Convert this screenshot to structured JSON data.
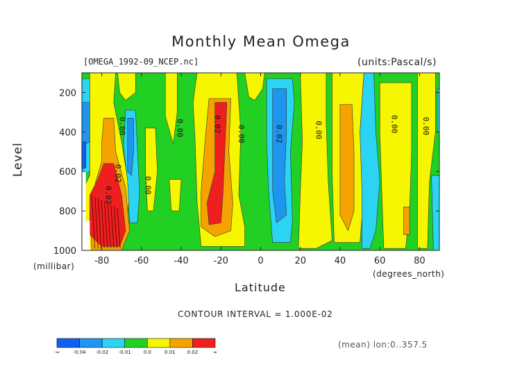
{
  "chart_data": {
    "type": "heatmap",
    "title": "Monthly Mean Omega",
    "source_label": "[OMEGA_1992-09_NCEP.nc]",
    "units_label": "(units:Pascal/s)",
    "xlabel": "Latitude",
    "x_units": "(degrees_north)",
    "ylabel": "Level",
    "y_units": "(millibar)",
    "xlim": [
      -90,
      90
    ],
    "ylim": [
      1000,
      100
    ],
    "x_ticks": [
      "-80",
      "-60",
      "-40",
      "-20",
      "0",
      "20",
      "40",
      "60",
      "80"
    ],
    "x_tick_values": [
      -80,
      -60,
      -40,
      -20,
      0,
      20,
      40,
      60,
      80
    ],
    "y_ticks": [
      "200",
      "400",
      "600",
      "800",
      "1000"
    ],
    "y_tick_values": [
      200,
      400,
      600,
      800,
      1000
    ],
    "contour_interval": "CONTOUR INTERVAL = 1.000E-02",
    "mean_note": "(mean) lon:0..357.5",
    "colorbar": {
      "labels": [
        "-∞",
        "-0.04",
        "-0.02",
        "-0.01",
        "0.0",
        "0.01",
        "0.02",
        "∞"
      ],
      "colors": [
        "#1060f0",
        "#1e96f0",
        "#2ad4f2",
        "#22d024",
        "#f6f600",
        "#f5a300",
        "#ef1f1f"
      ]
    },
    "contour_labels": [
      {
        "text": "0.00",
        "lat": -71,
        "lev": 370
      },
      {
        "text": "0.00",
        "lat": -42,
        "lev": 380
      },
      {
        "text": "0.02",
        "lat": -23,
        "lev": 360
      },
      {
        "text": "0.00",
        "lat": -11,
        "lev": 410
      },
      {
        "text": "0.02",
        "lat": 8,
        "lev": 410
      },
      {
        "text": "0.00",
        "lat": 28,
        "lev": 390
      },
      {
        "text": "0.00",
        "lat": 66,
        "lev": 360
      },
      {
        "text": "0.00",
        "lat": 82,
        "lev": 370
      },
      {
        "text": "0.00",
        "lat": -58,
        "lev": 670
      },
      {
        "text": "0.02",
        "lat": -73,
        "lev": 610
      },
      {
        "text": "0.02",
        "lat": -78,
        "lev": 720
      }
    ],
    "regions": [
      {
        "bin": "0.0",
        "poly": [
          [
            -90,
            100
          ],
          [
            90,
            100
          ],
          [
            90,
            1000
          ],
          [
            -90,
            1000
          ]
        ]
      },
      {
        "bin": "-0.01",
        "poly": [
          [
            -90,
            130
          ],
          [
            -84,
            130
          ],
          [
            -83,
            350
          ],
          [
            -86,
            600
          ],
          [
            -90,
            620
          ]
        ]
      },
      {
        "bin": "-0.02",
        "poly": [
          [
            -90,
            250
          ],
          [
            -86,
            250
          ],
          [
            -86,
            450
          ],
          [
            -90,
            470
          ]
        ]
      },
      {
        "bin": "-0.04",
        "poly": [
          [
            -90,
            450
          ],
          [
            -88,
            450
          ],
          [
            -88,
            580
          ],
          [
            -90,
            590
          ]
        ]
      },
      {
        "bin": "0.01",
        "poly": [
          [
            -86,
            100
          ],
          [
            -73,
            100
          ],
          [
            -74,
            250
          ],
          [
            -70,
            450
          ],
          [
            -66,
            700
          ],
          [
            -68,
            950
          ],
          [
            -72,
            1000
          ],
          [
            -86,
            1000
          ],
          [
            -90,
            900
          ],
          [
            -90,
            700
          ],
          [
            -86,
            620
          ]
        ]
      },
      {
        "bin": "0.02",
        "poly": [
          [
            -79,
            330
          ],
          [
            -74,
            330
          ],
          [
            -73,
            500
          ],
          [
            -68,
            680
          ],
          [
            -66,
            900
          ],
          [
            -70,
            1000
          ],
          [
            -85,
            1000
          ],
          [
            -86,
            800
          ],
          [
            -83,
            650
          ],
          [
            -80,
            550
          ],
          [
            -80,
            450
          ]
        ]
      },
      {
        "bin": ">0.02",
        "poly": [
          [
            -79,
            560
          ],
          [
            -74,
            560
          ],
          [
            -70,
            720
          ],
          [
            -68,
            900
          ],
          [
            -71,
            980
          ],
          [
            -80,
            980
          ],
          [
            -86,
            920
          ],
          [
            -86,
            720
          ],
          [
            -82,
            640
          ]
        ]
      },
      {
        "bin": "-0.01",
        "poly": [
          [
            -68,
            290
          ],
          [
            -63,
            290
          ],
          [
            -62,
            500
          ],
          [
            -61,
            700
          ],
          [
            -62,
            860
          ],
          [
            -66,
            860
          ],
          [
            -67,
            650
          ],
          [
            -69,
            480
          ]
        ]
      },
      {
        "bin": "-0.02",
        "poly": [
          [
            -67,
            330
          ],
          [
            -64,
            330
          ],
          [
            -64,
            500
          ],
          [
            -65,
            620
          ],
          [
            -67,
            600
          ]
        ]
      },
      {
        "bin": "0.01",
        "poly": [
          [
            -72,
            100
          ],
          [
            -63,
            100
          ],
          [
            -63,
            200
          ],
          [
            -68,
            240
          ],
          [
            -71,
            200
          ]
        ]
      },
      {
        "bin": "0.01",
        "poly": [
          [
            -48,
            100
          ],
          [
            -42,
            100
          ],
          [
            -42,
            300
          ],
          [
            -44,
            460
          ],
          [
            -48,
            320
          ]
        ]
      },
      {
        "bin": "0.01",
        "poly": [
          [
            -58,
            380
          ],
          [
            -53,
            380
          ],
          [
            -52,
            600
          ],
          [
            -54,
            800
          ],
          [
            -57,
            800
          ],
          [
            -58,
            600
          ]
        ]
      },
      {
        "bin": "0.01",
        "poly": [
          [
            -46,
            640
          ],
          [
            -40,
            640
          ],
          [
            -41,
            800
          ],
          [
            -45,
            800
          ]
        ]
      },
      {
        "bin": "0.01",
        "poly": [
          [
            -32,
            100
          ],
          [
            -12,
            100
          ],
          [
            -10,
            400
          ],
          [
            -11,
            720
          ],
          [
            -8,
            880
          ],
          [
            -8,
            980
          ],
          [
            -30,
            980
          ],
          [
            -32,
            750
          ],
          [
            -33,
            450
          ],
          [
            -34,
            250
          ]
        ]
      },
      {
        "bin": "0.02",
        "poly": [
          [
            -26,
            230
          ],
          [
            -15,
            230
          ],
          [
            -16,
            500
          ],
          [
            -14,
            760
          ],
          [
            -15,
            900
          ],
          [
            -23,
            930
          ],
          [
            -30,
            880
          ],
          [
            -30,
            700
          ],
          [
            -28,
            450
          ]
        ]
      },
      {
        "bin": ">0.02",
        "poly": [
          [
            -23,
            250
          ],
          [
            -17,
            250
          ],
          [
            -18,
            480
          ],
          [
            -19,
            720
          ],
          [
            -20,
            860
          ],
          [
            -26,
            870
          ],
          [
            -27,
            760
          ],
          [
            -23,
            600
          ]
        ]
      },
      {
        "bin": "0.01",
        "poly": [
          [
            -8,
            100
          ],
          [
            2,
            100
          ],
          [
            1,
            180
          ],
          [
            -3,
            240
          ],
          [
            -6,
            220
          ]
        ]
      },
      {
        "bin": "-0.01",
        "poly": [
          [
            3,
            130
          ],
          [
            16,
            130
          ],
          [
            17,
            250
          ],
          [
            15,
            500
          ],
          [
            16,
            850
          ],
          [
            15,
            960
          ],
          [
            6,
            960
          ],
          [
            4,
            700
          ],
          [
            3,
            450
          ]
        ]
      },
      {
        "bin": "-0.02",
        "poly": [
          [
            6,
            180
          ],
          [
            13,
            180
          ],
          [
            13,
            400
          ],
          [
            12,
            650
          ],
          [
            13,
            820
          ],
          [
            8,
            860
          ],
          [
            6,
            700
          ],
          [
            6,
            400
          ]
        ]
      },
      {
        "bin": "0.01",
        "poly": [
          [
            20,
            100
          ],
          [
            33,
            100
          ],
          [
            33,
            350
          ],
          [
            34,
            650
          ],
          [
            36,
            950
          ],
          [
            28,
            990
          ],
          [
            19,
            990
          ],
          [
            20,
            700
          ],
          [
            21,
            450
          ]
        ]
      },
      {
        "bin": "0.01",
        "poly": [
          [
            36,
            100
          ],
          [
            52,
            100
          ],
          [
            50,
            400
          ],
          [
            52,
            700
          ],
          [
            50,
            960
          ],
          [
            37,
            960
          ],
          [
            36,
            600
          ]
        ]
      },
      {
        "bin": "0.02",
        "poly": [
          [
            40,
            260
          ],
          [
            46,
            260
          ],
          [
            47,
            500
          ],
          [
            47,
            800
          ],
          [
            44,
            900
          ],
          [
            40,
            820
          ],
          [
            40,
            500
          ]
        ]
      },
      {
        "bin": "-0.01",
        "poly": [
          [
            52,
            100
          ],
          [
            57,
            100
          ],
          [
            58,
            400
          ],
          [
            60,
            650
          ],
          [
            58,
            900
          ],
          [
            55,
            990
          ],
          [
            51,
            990
          ],
          [
            51,
            700
          ],
          [
            50,
            400
          ]
        ]
      },
      {
        "bin": "0.01",
        "poly": [
          [
            60,
            150
          ],
          [
            76,
            150
          ],
          [
            76,
            500
          ],
          [
            75,
            800
          ],
          [
            73,
            990
          ],
          [
            62,
            990
          ],
          [
            61,
            700
          ],
          [
            60,
            400
          ]
        ]
      },
      {
        "bin": "0.02",
        "poly": [
          [
            72,
            780
          ],
          [
            75,
            780
          ],
          [
            75,
            920
          ],
          [
            72,
            920
          ]
        ]
      },
      {
        "bin": "0.01",
        "poly": [
          [
            79,
            100
          ],
          [
            88,
            100
          ],
          [
            88,
            400
          ],
          [
            85,
            650
          ],
          [
            84,
            990
          ],
          [
            79,
            990
          ],
          [
            79,
            600
          ]
        ]
      },
      {
        "bin": "-0.01",
        "poly": [
          [
            86,
            620
          ],
          [
            90,
            620
          ],
          [
            90,
            1000
          ],
          [
            87,
            1000
          ]
        ]
      },
      {
        "bin": "-0.01",
        "poly": [
          [
            89,
            180
          ],
          [
            90,
            180
          ],
          [
            90,
            400
          ],
          [
            89,
            400
          ]
        ]
      }
    ]
  }
}
